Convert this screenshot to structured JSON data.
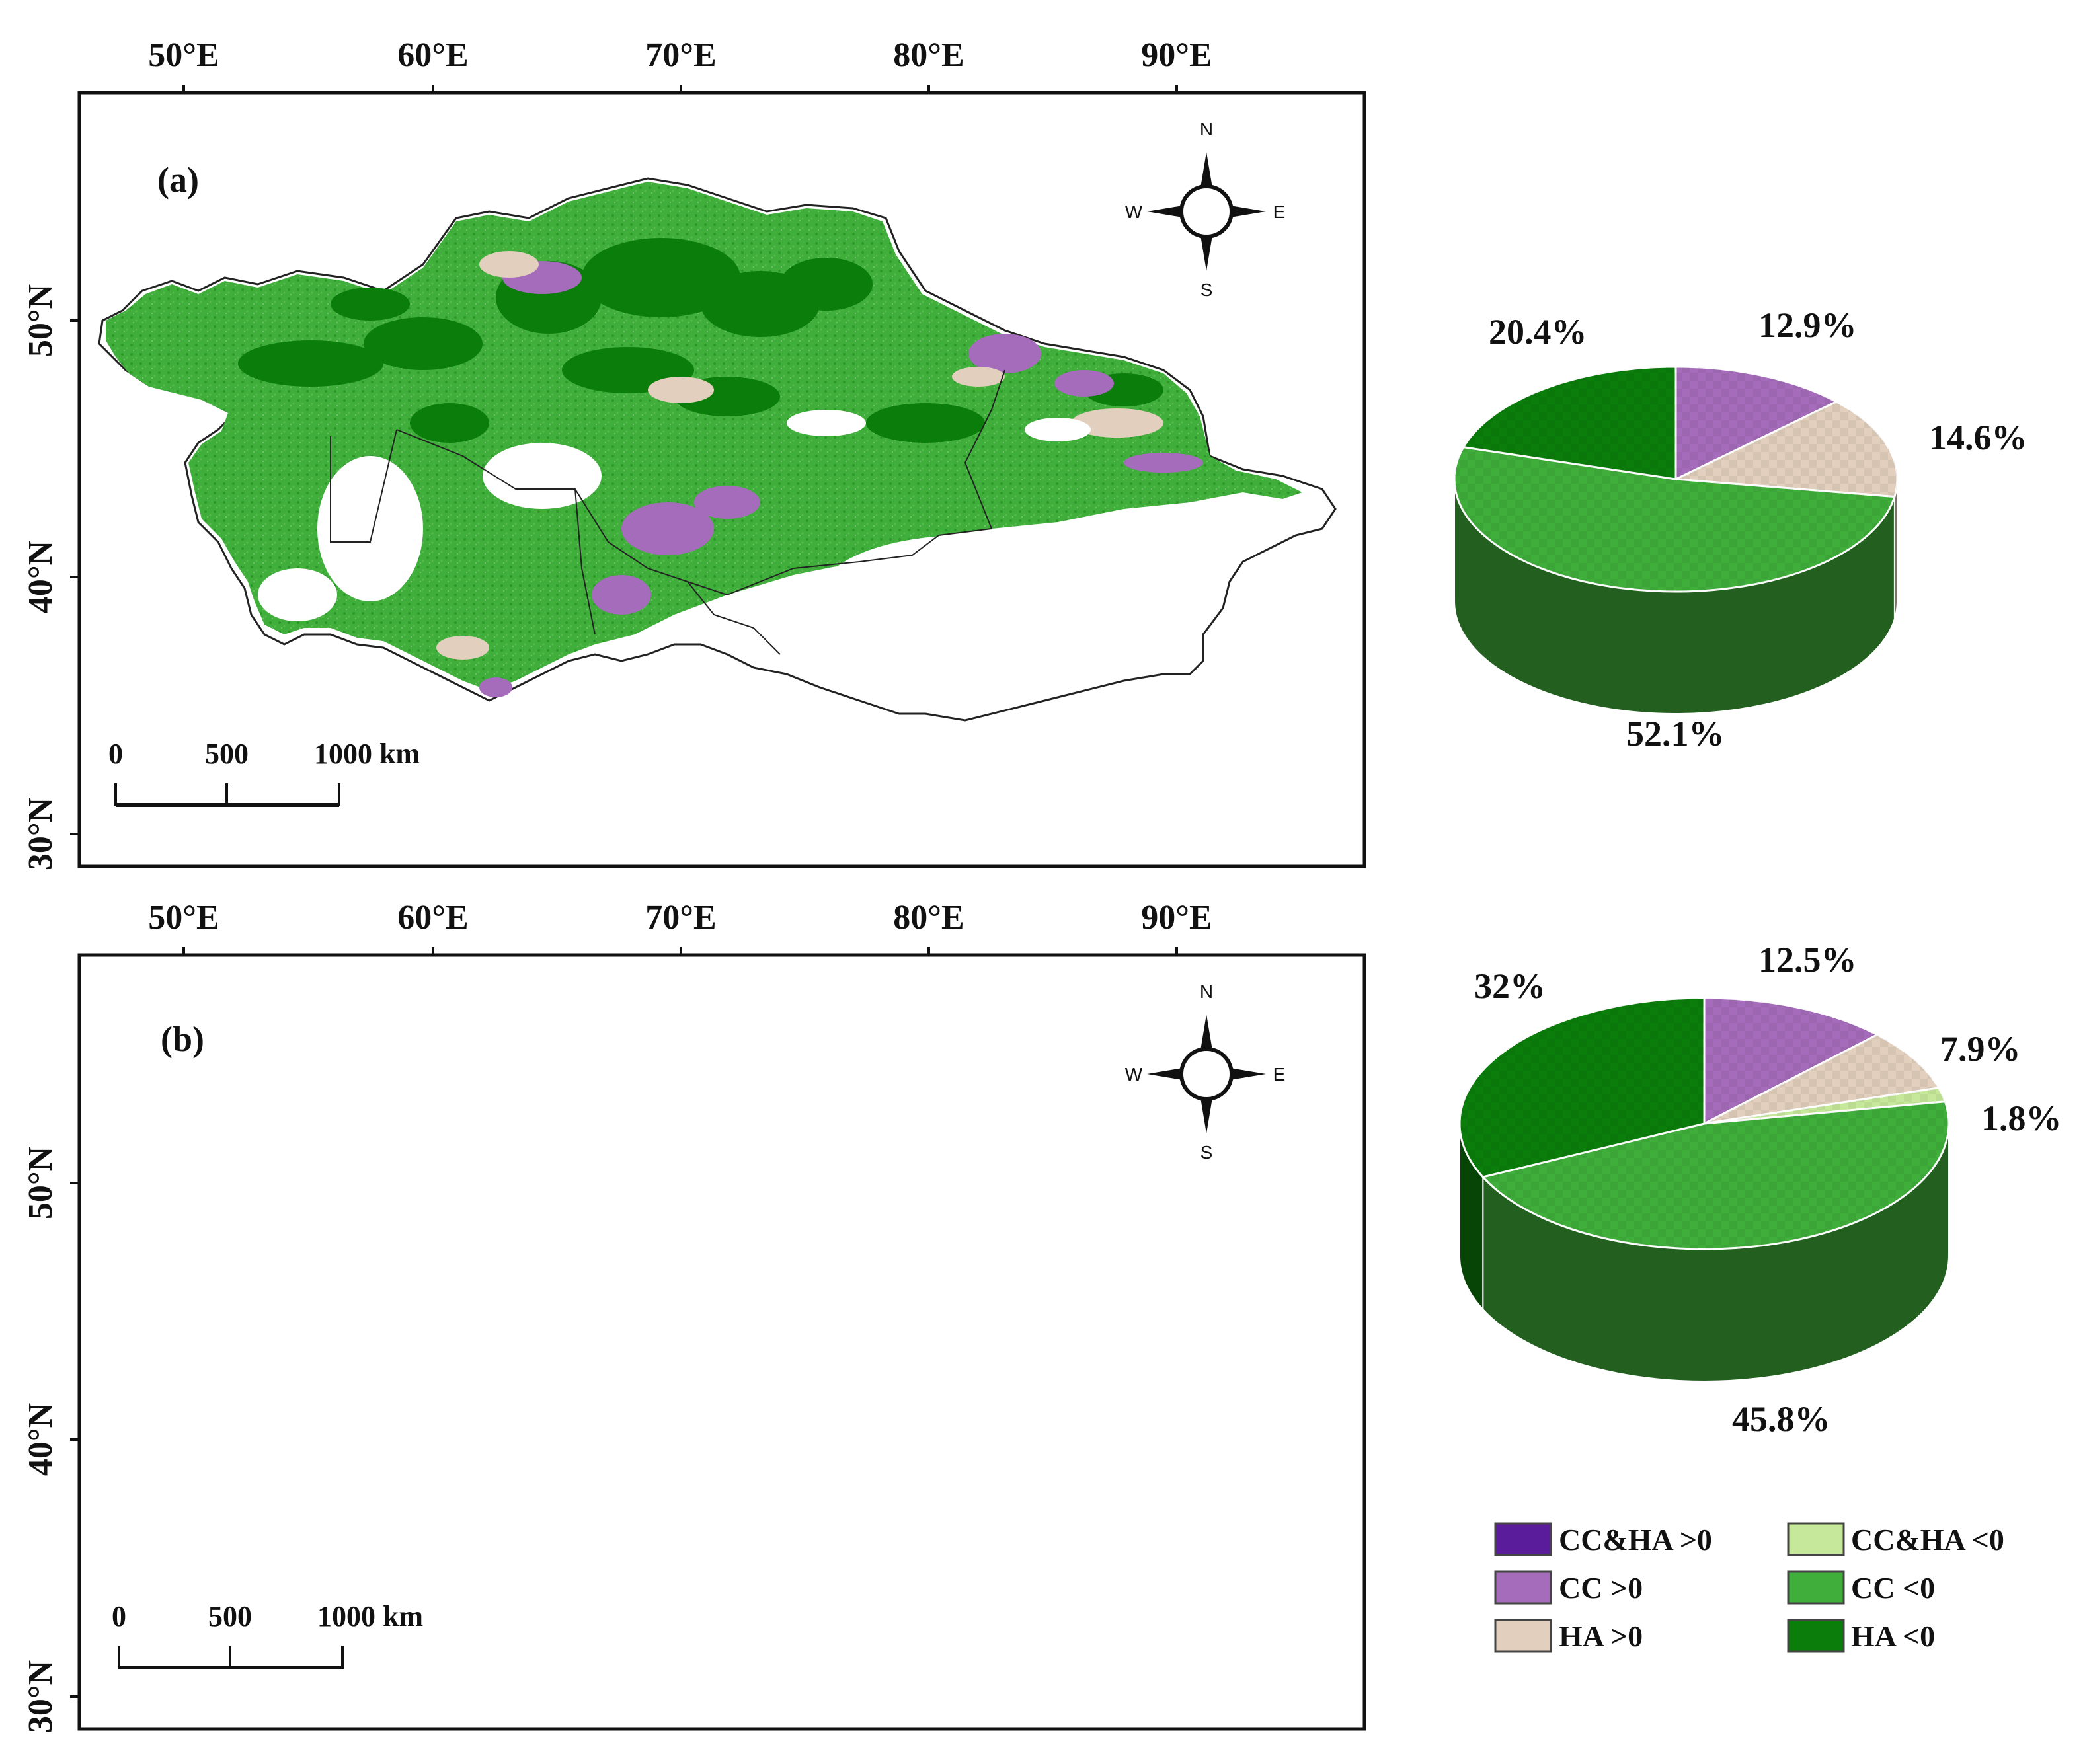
{
  "colors": {
    "cc_ha_pos": "#5b1c9c",
    "cc_pos": "#a46cba",
    "ha_pos": "#e2cfbd",
    "cc_ha_neg": "#c6e89a",
    "cc_neg": "#3fae3a",
    "ha_neg": "#0b7d0b",
    "border": "#111111"
  },
  "axes": {
    "lon_labels": [
      "50°E",
      "60°E",
      "70°E",
      "80°E",
      "90°E"
    ],
    "lat_labels": [
      "50°N",
      "40°N",
      "30°N"
    ]
  },
  "compass": {
    "n": "N",
    "s": "S",
    "e": "E",
    "w": "W"
  },
  "scalebar": {
    "t0": "0",
    "t1": "500",
    "t2": "1000 km"
  },
  "panels": [
    {
      "label": "(a)"
    },
    {
      "label": "(b)"
    }
  ],
  "chart_data": [
    {
      "type": "pie",
      "panel": "(a)",
      "categories": [
        "CC >0",
        "HA >0",
        "CC <0",
        "HA <0"
      ],
      "values": [
        12.9,
        14.6,
        52.1,
        20.4
      ],
      "labels": [
        "12.9%",
        "14.6%",
        "52.1%",
        "20.4%"
      ]
    },
    {
      "type": "pie",
      "panel": "(b)",
      "categories": [
        "CC >0",
        "HA >0",
        "CC&HA <0",
        "CC <0",
        "HA <0"
      ],
      "values": [
        12.5,
        7.9,
        1.8,
        45.8,
        32
      ],
      "labels": [
        "12.5%",
        "7.9%",
        "1.8%",
        "45.8%",
        "32%"
      ]
    }
  ],
  "legend": [
    {
      "label": "CC&HA >0",
      "color_key": "cc_ha_pos"
    },
    {
      "label": "CC&HA <0",
      "color_key": "cc_ha_neg"
    },
    {
      "label": "CC >0",
      "color_key": "cc_pos"
    },
    {
      "label": "CC <0",
      "color_key": "cc_neg"
    },
    {
      "label": "HA >0",
      "color_key": "ha_pos"
    },
    {
      "label": "HA <0",
      "color_key": "ha_neg"
    }
  ]
}
